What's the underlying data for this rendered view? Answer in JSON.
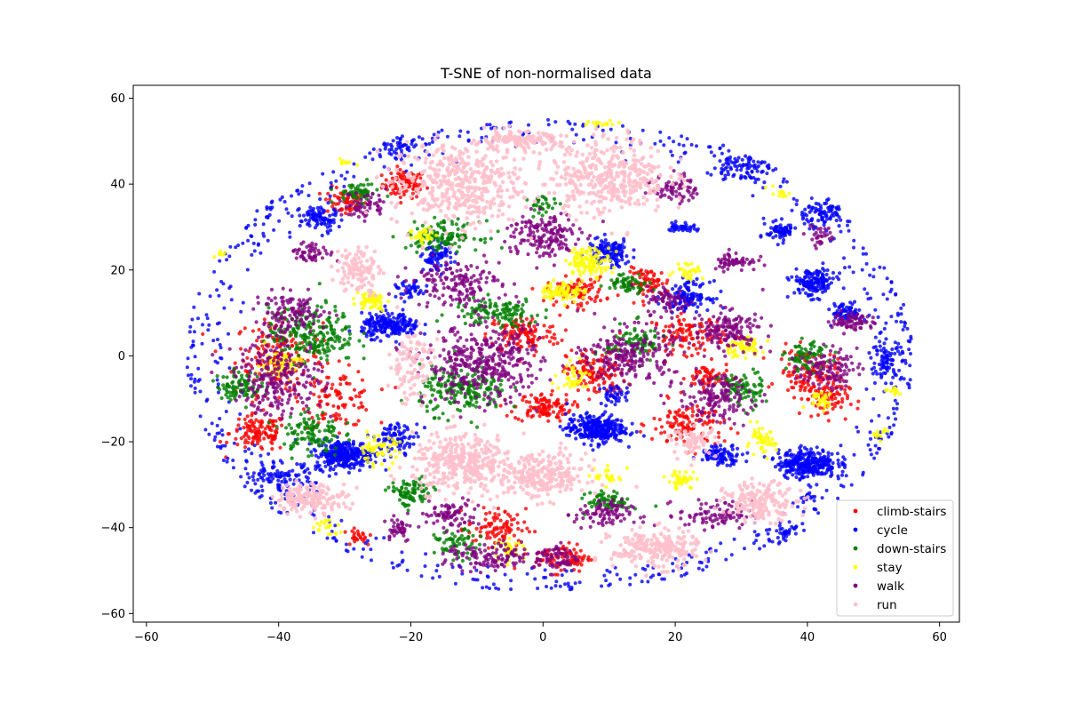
{
  "chart_data": {
    "type": "scatter",
    "title": "T-SNE of non-normalised data",
    "xlabel": "",
    "ylabel": "",
    "xlim": [
      -62,
      63
    ],
    "ylim": [
      -62,
      63
    ],
    "x_ticks": [
      -60,
      -40,
      -20,
      0,
      20,
      40,
      60
    ],
    "y_ticks": [
      -60,
      -40,
      -20,
      0,
      20,
      40,
      60
    ],
    "x_tick_labels": [
      "−60",
      "−40",
      "−20",
      "0",
      "20",
      "40",
      "60"
    ],
    "y_tick_labels": [
      "−60",
      "−40",
      "−20",
      "0",
      "20",
      "40",
      "60"
    ],
    "grid": false,
    "legend_position": "lower-right",
    "series": [
      {
        "name": "climb-stairs",
        "color": "#ff0000",
        "clusters": [
          {
            "x": -21,
            "y": 40,
            "rx": 3,
            "ry": 3,
            "n": 90
          },
          {
            "x": -30,
            "y": 36,
            "rx": 3,
            "ry": 3,
            "n": 60
          },
          {
            "x": -40,
            "y": 0,
            "rx": 6,
            "ry": 8,
            "n": 180
          },
          {
            "x": -43,
            "y": -18,
            "rx": 4,
            "ry": 4,
            "n": 120
          },
          {
            "x": -31,
            "y": -10,
            "rx": 5,
            "ry": 6,
            "n": 100
          },
          {
            "x": -3,
            "y": 5,
            "rx": 5,
            "ry": 4,
            "n": 120
          },
          {
            "x": 0,
            "y": -12,
            "rx": 4,
            "ry": 3,
            "n": 110
          },
          {
            "x": 8,
            "y": -4,
            "rx": 4,
            "ry": 5,
            "n": 130
          },
          {
            "x": 5,
            "y": 15,
            "rx": 4,
            "ry": 3,
            "n": 90
          },
          {
            "x": 16,
            "y": 17,
            "rx": 3,
            "ry": 3,
            "n": 70
          },
          {
            "x": 22,
            "y": 5,
            "rx": 5,
            "ry": 4,
            "n": 110
          },
          {
            "x": 22,
            "y": -16,
            "rx": 5,
            "ry": 5,
            "n": 120
          },
          {
            "x": 25,
            "y": -5,
            "rx": 3,
            "ry": 3,
            "n": 60
          },
          {
            "x": 40,
            "y": -4,
            "rx": 4,
            "ry": 5,
            "n": 110
          },
          {
            "x": 43,
            "y": -10,
            "rx": 3,
            "ry": 4,
            "n": 70
          },
          {
            "x": -7,
            "y": -40,
            "rx": 4,
            "ry": 4,
            "n": 90
          },
          {
            "x": 3,
            "y": -47,
            "rx": 4,
            "ry": 3,
            "n": 90
          },
          {
            "x": -28,
            "y": -42,
            "rx": 2,
            "ry": 2,
            "n": 25
          }
        ]
      },
      {
        "name": "cycle",
        "color": "#0000ff",
        "clusters": [
          {
            "x": -30,
            "y": -23,
            "rx": 4,
            "ry": 3,
            "n": 300
          },
          {
            "x": 8,
            "y": -17,
            "rx": 4,
            "ry": 3,
            "n": 300
          },
          {
            "x": 40,
            "y": -25,
            "rx": 4,
            "ry": 3,
            "n": 300
          },
          {
            "x": -23,
            "y": 7,
            "rx": 4,
            "ry": 2.5,
            "n": 220
          },
          {
            "x": 10,
            "y": 24,
            "rx": 3,
            "ry": 3,
            "n": 120
          },
          {
            "x": 22,
            "y": 14,
            "rx": 3,
            "ry": 3,
            "n": 120
          },
          {
            "x": 41,
            "y": 17,
            "rx": 3,
            "ry": 3,
            "n": 150
          },
          {
            "x": 46,
            "y": 10,
            "rx": 2,
            "ry": 2,
            "n": 70
          },
          {
            "x": 36,
            "y": 29,
            "rx": 2,
            "ry": 2,
            "n": 70
          },
          {
            "x": -34,
            "y": 32,
            "rx": 2.5,
            "ry": 3,
            "n": 90
          },
          {
            "x": -16,
            "y": 23,
            "rx": 2,
            "ry": 3,
            "n": 80
          },
          {
            "x": -20,
            "y": 15,
            "rx": 2,
            "ry": 2,
            "n": 40
          },
          {
            "x": 27,
            "y": -23,
            "rx": 3,
            "ry": 2,
            "n": 90
          },
          {
            "x": 11,
            "y": -9,
            "rx": 2,
            "ry": 2,
            "n": 40
          },
          {
            "x": -22,
            "y": -19,
            "rx": 3,
            "ry": 3,
            "n": 80
          },
          {
            "x": 21,
            "y": 30,
            "rx": 2,
            "ry": 1,
            "n": 40
          },
          {
            "x": 40,
            "y": -33,
            "rx": 1,
            "ry": 1,
            "n": 15
          },
          {
            "x": -44,
            "y": 37,
            "rx": 4,
            "ry": 4,
            "n": 70
          },
          {
            "x": 30,
            "y": 44,
            "rx": 4,
            "ry": 3,
            "n": 80
          },
          {
            "x": 42,
            "y": 33,
            "rx": 4,
            "ry": 3,
            "n": 90
          },
          {
            "x": -40,
            "y": -29,
            "rx": 5,
            "ry": 4,
            "n": 110
          },
          {
            "x": 52,
            "y": -1,
            "rx": 2,
            "ry": 4,
            "n": 70
          },
          {
            "x": 38,
            "y": -42,
            "rx": 4,
            "ry": 3,
            "n": 60
          },
          {
            "x": -22,
            "y": 49,
            "rx": 3,
            "ry": 3,
            "n": 45
          }
        ],
        "rings": [
          {
            "cx": 1,
            "cy": 0,
            "rx": 55,
            "ry": 55,
            "n": 480
          },
          {
            "cx": 1,
            "cy": 0,
            "rx": 51,
            "ry": 52,
            "n": 150
          }
        ]
      },
      {
        "name": "down-stairs",
        "color": "#008000",
        "clusters": [
          {
            "x": -35,
            "y": 5,
            "rx": 6,
            "ry": 6,
            "n": 220
          },
          {
            "x": -46,
            "y": -7,
            "rx": 3,
            "ry": 3,
            "n": 90
          },
          {
            "x": -35,
            "y": -18,
            "rx": 4,
            "ry": 5,
            "n": 110
          },
          {
            "x": -12,
            "y": -8,
            "rx": 6,
            "ry": 5,
            "n": 200
          },
          {
            "x": -7,
            "y": 10,
            "rx": 6,
            "ry": 3,
            "n": 120
          },
          {
            "x": -15,
            "y": 28,
            "rx": 5,
            "ry": 3,
            "n": 120
          },
          {
            "x": -28,
            "y": 38,
            "rx": 3,
            "ry": 2,
            "n": 60
          },
          {
            "x": -20,
            "y": -32,
            "rx": 3,
            "ry": 3,
            "n": 90
          },
          {
            "x": 10,
            "y": -34,
            "rx": 3,
            "ry": 2,
            "n": 70
          },
          {
            "x": 14,
            "y": 3,
            "rx": 4,
            "ry": 4,
            "n": 90
          },
          {
            "x": 30,
            "y": -8,
            "rx": 3,
            "ry": 4,
            "n": 80
          },
          {
            "x": 40,
            "y": 0,
            "rx": 3,
            "ry": 3,
            "n": 70
          },
          {
            "x": -13,
            "y": -44,
            "rx": 3,
            "ry": 3,
            "n": 60
          },
          {
            "x": 13,
            "y": 17,
            "rx": 3,
            "ry": 2,
            "n": 60
          },
          {
            "x": 0,
            "y": 35,
            "rx": 2,
            "ry": 2,
            "n": 30
          }
        ]
      },
      {
        "name": "stay",
        "color": "#ffff00",
        "clusters": [
          {
            "x": 7,
            "y": 22,
            "rx": 3,
            "ry": 3,
            "n": 120
          },
          {
            "x": 3,
            "y": 15,
            "rx": 3,
            "ry": 2,
            "n": 80
          },
          {
            "x": -26,
            "y": 13,
            "rx": 2,
            "ry": 2,
            "n": 60
          },
          {
            "x": -40,
            "y": -2,
            "rx": 3,
            "ry": 3,
            "n": 70
          },
          {
            "x": 30,
            "y": 2,
            "rx": 3,
            "ry": 2,
            "n": 60
          },
          {
            "x": 33,
            "y": -20,
            "rx": 2,
            "ry": 3,
            "n": 50
          },
          {
            "x": -25,
            "y": -22,
            "rx": 3,
            "ry": 3,
            "n": 60
          },
          {
            "x": -5,
            "y": -45,
            "rx": 2,
            "ry": 2,
            "n": 40
          },
          {
            "x": 21,
            "y": -29,
            "rx": 2,
            "ry": 2,
            "n": 40
          },
          {
            "x": 42,
            "y": -10,
            "rx": 2,
            "ry": 2,
            "n": 30
          },
          {
            "x": -18,
            "y": 28,
            "rx": 2,
            "ry": 2,
            "n": 30
          },
          {
            "x": 22,
            "y": 20,
            "rx": 2,
            "ry": 2,
            "n": 30
          },
          {
            "x": 36,
            "y": 38,
            "rx": 2,
            "ry": 1,
            "n": 12
          },
          {
            "x": 53,
            "y": -8,
            "rx": 1,
            "ry": 1,
            "n": 12
          },
          {
            "x": 51,
            "y": -18,
            "rx": 1,
            "ry": 1,
            "n": 12
          },
          {
            "x": -30,
            "y": 45,
            "rx": 2,
            "ry": 1,
            "n": 10
          },
          {
            "x": -49,
            "y": 24,
            "rx": 1,
            "ry": 1,
            "n": 10
          },
          {
            "x": 5,
            "y": -5,
            "rx": 3,
            "ry": 3,
            "n": 40
          },
          {
            "x": 10,
            "y": -28,
            "rx": 2,
            "ry": 2,
            "n": 25
          },
          {
            "x": -33,
            "y": -40,
            "rx": 2,
            "ry": 2,
            "n": 20
          },
          {
            "x": 9,
            "y": 54,
            "rx": 3,
            "ry": 1,
            "n": 15
          }
        ]
      },
      {
        "name": "walk",
        "color": "#800080",
        "clusters": [
          {
            "x": -9,
            "y": -2,
            "rx": 8,
            "ry": 8,
            "n": 380
          },
          {
            "x": -40,
            "y": -5,
            "rx": 6,
            "ry": 8,
            "n": 240
          },
          {
            "x": -38,
            "y": 10,
            "rx": 5,
            "ry": 4,
            "n": 120
          },
          {
            "x": -13,
            "y": 17,
            "rx": 6,
            "ry": 5,
            "n": 160
          },
          {
            "x": 0,
            "y": 28,
            "rx": 5,
            "ry": 5,
            "n": 170
          },
          {
            "x": 13,
            "y": 0,
            "rx": 6,
            "ry": 6,
            "n": 210
          },
          {
            "x": 28,
            "y": 6,
            "rx": 5,
            "ry": 4,
            "n": 150
          },
          {
            "x": 26,
            "y": -10,
            "rx": 5,
            "ry": 5,
            "n": 150
          },
          {
            "x": 43,
            "y": -3,
            "rx": 4,
            "ry": 4,
            "n": 110
          },
          {
            "x": 47,
            "y": 8,
            "rx": 3,
            "ry": 2,
            "n": 70
          },
          {
            "x": -27,
            "y": 35,
            "rx": 3,
            "ry": 3,
            "n": 60
          },
          {
            "x": 20,
            "y": 39,
            "rx": 3,
            "ry": 3,
            "n": 70
          },
          {
            "x": -35,
            "y": 24,
            "rx": 3,
            "ry": 2,
            "n": 55
          },
          {
            "x": -14,
            "y": -37,
            "rx": 4,
            "ry": 3,
            "n": 80
          },
          {
            "x": -8,
            "y": -47,
            "rx": 6,
            "ry": 3,
            "n": 120
          },
          {
            "x": 9,
            "y": -37,
            "rx": 4,
            "ry": 3,
            "n": 90
          },
          {
            "x": 26,
            "y": -37,
            "rx": 5,
            "ry": 3,
            "n": 90
          },
          {
            "x": 2,
            "y": -47,
            "rx": 3,
            "ry": 3,
            "n": 70
          },
          {
            "x": -22,
            "y": -40,
            "rx": 2,
            "ry": 3,
            "n": 40
          },
          {
            "x": 19,
            "y": 13,
            "rx": 3,
            "ry": 3,
            "n": 70
          },
          {
            "x": 29,
            "y": 22,
            "rx": 3,
            "ry": 2,
            "n": 60
          },
          {
            "x": 42,
            "y": 28,
            "rx": 2,
            "ry": 2,
            "n": 30
          }
        ]
      },
      {
        "name": "run",
        "color": "#ffc0cb",
        "clusters": [
          {
            "x": -13,
            "y": 40,
            "rx": 9,
            "ry": 9,
            "n": 420
          },
          {
            "x": 10,
            "y": 42,
            "rx": 8,
            "ry": 8,
            "n": 380
          },
          {
            "x": -12,
            "y": -25,
            "rx": 7,
            "ry": 6,
            "n": 360
          },
          {
            "x": 0,
            "y": -28,
            "rx": 6,
            "ry": 5,
            "n": 250
          },
          {
            "x": 17,
            "y": -45,
            "rx": 6,
            "ry": 4,
            "n": 220
          },
          {
            "x": 33,
            "y": -34,
            "rx": 5,
            "ry": 4,
            "n": 170
          },
          {
            "x": -35,
            "y": -33,
            "rx": 5,
            "ry": 3,
            "n": 170
          },
          {
            "x": -28,
            "y": 20,
            "rx": 3,
            "ry": 5,
            "n": 110
          },
          {
            "x": -20,
            "y": -2,
            "rx": 3,
            "ry": 8,
            "n": 100
          },
          {
            "x": -4,
            "y": 50,
            "rx": 6,
            "ry": 2,
            "n": 130
          },
          {
            "x": 23,
            "y": -20,
            "rx": 3,
            "ry": 3,
            "n": 60
          }
        ]
      }
    ]
  }
}
